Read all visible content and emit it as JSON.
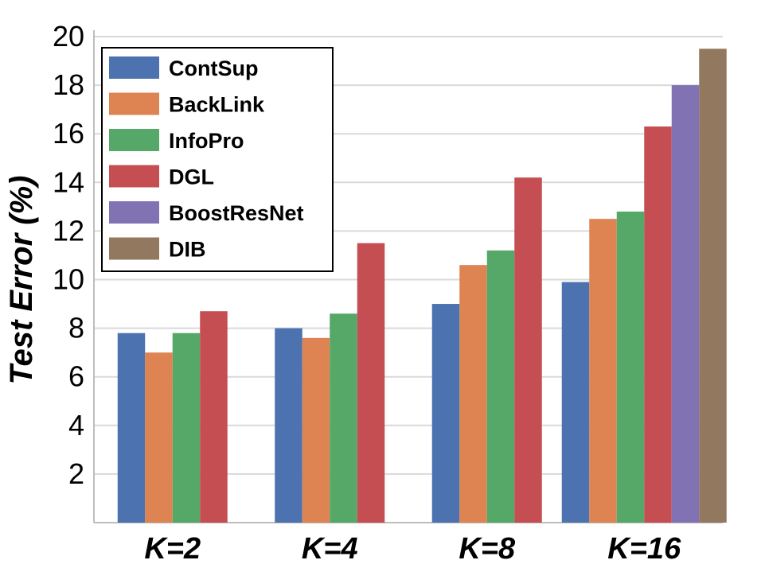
{
  "chart_data": {
    "type": "bar",
    "title": "",
    "xlabel": "",
    "ylabel": "Test Error (%)",
    "ylim": [
      0,
      20
    ],
    "yticks": [
      2,
      4,
      6,
      8,
      10,
      12,
      14,
      16,
      18,
      20
    ],
    "categories": [
      "K=2",
      "K=4",
      "K=8",
      "K=16"
    ],
    "grid": true,
    "legend_position": "top-left",
    "series": [
      {
        "name": "ContSup",
        "color": "#4C72B0",
        "values": [
          7.8,
          8.0,
          9.0,
          9.9
        ]
      },
      {
        "name": "BackLink",
        "color": "#DD8452",
        "values": [
          7.0,
          7.6,
          10.6,
          12.5
        ]
      },
      {
        "name": "InfoPro",
        "color": "#55A868",
        "values": [
          7.8,
          8.6,
          11.2,
          12.8
        ]
      },
      {
        "name": "DGL",
        "color": "#C44E52",
        "values": [
          8.7,
          11.5,
          14.2,
          16.3
        ]
      },
      {
        "name": "BoostResNet",
        "color": "#8172B3",
        "values": [
          null,
          null,
          null,
          18.0
        ]
      },
      {
        "name": "DIB",
        "color": "#937860",
        "values": [
          null,
          null,
          null,
          19.5
        ]
      }
    ]
  }
}
